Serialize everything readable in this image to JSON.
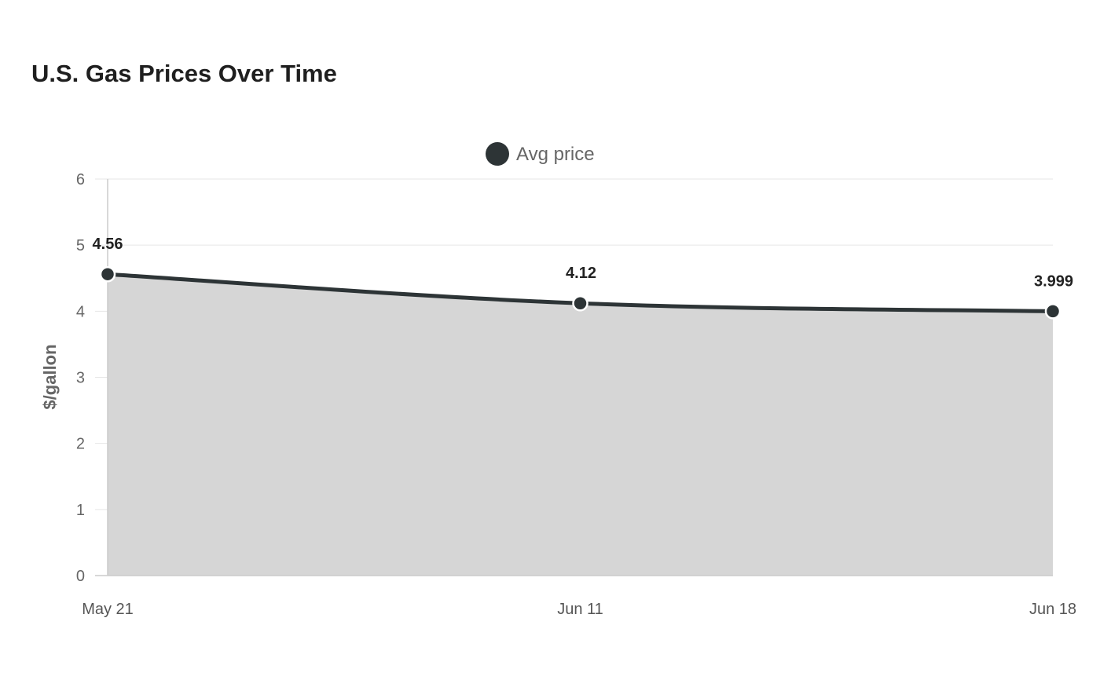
{
  "chart_data": {
    "type": "area",
    "title": "U.S. Gas Prices Over Time",
    "xlabel": "",
    "ylabel": "$/gallon",
    "categories": [
      "May 21",
      "Jun 11",
      "Jun 18"
    ],
    "series": [
      {
        "name": "Avg price",
        "values": [
          4.56,
          4.12,
          3.999
        ],
        "data_labels": [
          "4.56",
          "4.12",
          "3.999"
        ],
        "color": "#2d3436",
        "fill": "#d6d6d6"
      }
    ],
    "ylim": [
      0,
      6
    ],
    "yticks": [
      0,
      1,
      2,
      3,
      4,
      5,
      6
    ],
    "grid": true,
    "legend_position": "top-center"
  }
}
